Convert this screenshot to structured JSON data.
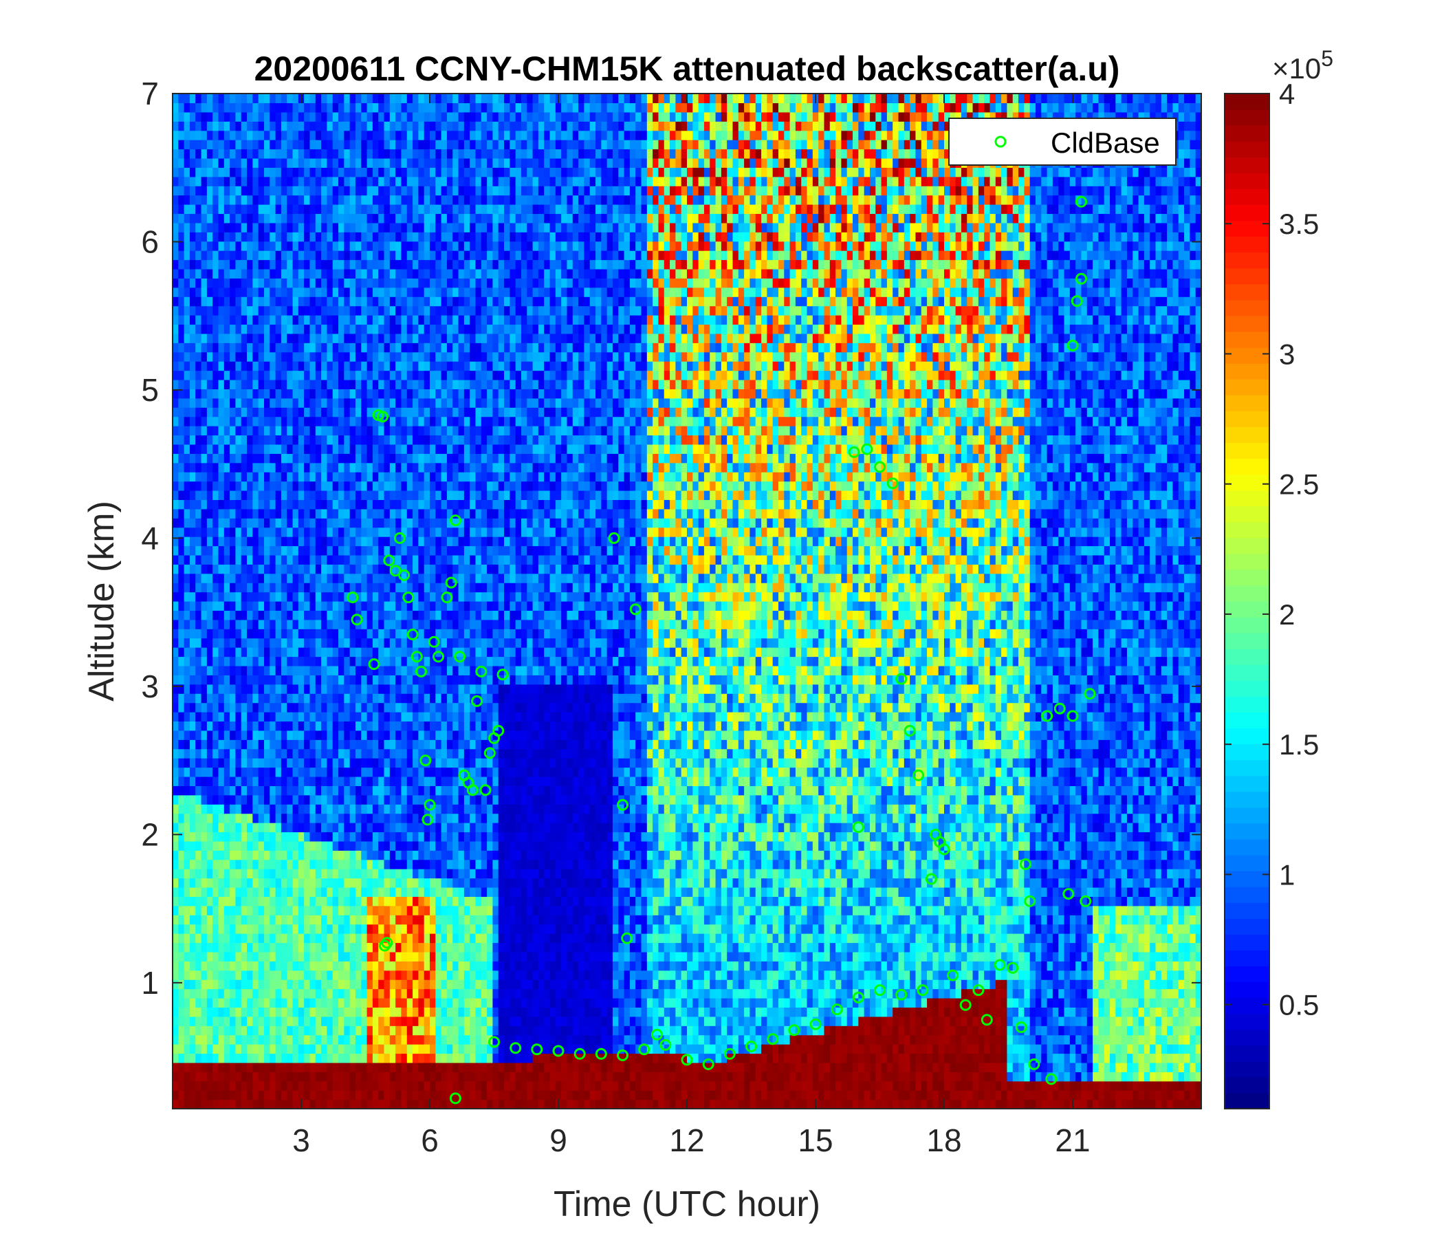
{
  "chart_data": {
    "type": "heatmap",
    "title": "20200611 CCNY-CHM15K attenuated backscatter(a.u)",
    "xlabel": "Time (UTC hour)",
    "ylabel": "Altitude (km)",
    "xlim": [
      0,
      24
    ],
    "ylim": [
      0.15,
      7
    ],
    "x_ticks": [
      3,
      6,
      9,
      12,
      15,
      18,
      21
    ],
    "y_ticks": [
      1,
      2,
      3,
      4,
      5,
      6,
      7
    ],
    "colorbar": {
      "colormap": "jet",
      "clim": [
        0.1,
        4
      ],
      "ticks": [
        0.5,
        1,
        1.5,
        2,
        2.5,
        3,
        3.5,
        4
      ],
      "multiplier": "×10",
      "exponent": "5"
    },
    "legend": {
      "location": "top-right",
      "entries": [
        "CldBase"
      ]
    },
    "series": [
      {
        "name": "CldBase",
        "marker": "circle",
        "color": "#00ff00",
        "points": [
          [
            4.2,
            3.6
          ],
          [
            4.3,
            3.45
          ],
          [
            4.7,
            3.15
          ],
          [
            4.8,
            4.83
          ],
          [
            4.9,
            4.82
          ],
          [
            4.95,
            1.25
          ],
          [
            5.0,
            1.27
          ],
          [
            5.05,
            3.85
          ],
          [
            5.2,
            3.78
          ],
          [
            5.3,
            4.0
          ],
          [
            5.4,
            3.75
          ],
          [
            5.5,
            3.6
          ],
          [
            5.6,
            3.35
          ],
          [
            5.7,
            3.2
          ],
          [
            5.8,
            3.1
          ],
          [
            5.9,
            2.5
          ],
          [
            5.95,
            2.1
          ],
          [
            6.0,
            2.2
          ],
          [
            6.1,
            3.3
          ],
          [
            6.2,
            3.2
          ],
          [
            6.4,
            3.6
          ],
          [
            6.5,
            3.7
          ],
          [
            6.6,
            4.12
          ],
          [
            6.7,
            3.2
          ],
          [
            6.8,
            2.4
          ],
          [
            6.9,
            2.35
          ],
          [
            7.0,
            2.3
          ],
          [
            7.1,
            2.9
          ],
          [
            7.2,
            3.1
          ],
          [
            7.3,
            2.3
          ],
          [
            7.4,
            2.55
          ],
          [
            7.5,
            2.65
          ],
          [
            7.6,
            2.7
          ],
          [
            7.7,
            3.08
          ],
          [
            6.6,
            0.22
          ],
          [
            7.5,
            0.6
          ],
          [
            8.0,
            0.56
          ],
          [
            8.5,
            0.55
          ],
          [
            9.0,
            0.54
          ],
          [
            9.5,
            0.52
          ],
          [
            10.0,
            0.52
          ],
          [
            10.5,
            0.51
          ],
          [
            11.0,
            0.55
          ],
          [
            11.3,
            0.65
          ],
          [
            11.5,
            0.58
          ],
          [
            12.0,
            0.48
          ],
          [
            12.5,
            0.45
          ],
          [
            13.0,
            0.52
          ],
          [
            13.5,
            0.57
          ],
          [
            14.0,
            0.62
          ],
          [
            14.5,
            0.68
          ],
          [
            15.0,
            0.72
          ],
          [
            15.5,
            0.82
          ],
          [
            16.0,
            0.9
          ],
          [
            16.5,
            0.95
          ],
          [
            17.0,
            0.92
          ],
          [
            17.5,
            0.95
          ],
          [
            17.8,
            2.0
          ],
          [
            17.9,
            1.95
          ],
          [
            18.0,
            1.9
          ],
          [
            18.2,
            1.05
          ],
          [
            18.5,
            0.85
          ],
          [
            18.8,
            0.95
          ],
          [
            19.0,
            0.75
          ],
          [
            19.3,
            1.12
          ],
          [
            19.6,
            1.1
          ],
          [
            19.8,
            0.7
          ],
          [
            19.9,
            1.8
          ],
          [
            20.0,
            1.55
          ],
          [
            20.1,
            0.45
          ],
          [
            20.4,
            2.8
          ],
          [
            20.5,
            0.35
          ],
          [
            20.7,
            2.85
          ],
          [
            20.9,
            1.6
          ],
          [
            21.0,
            2.8
          ],
          [
            21.0,
            5.3
          ],
          [
            21.1,
            5.6
          ],
          [
            21.2,
            5.75
          ],
          [
            21.2,
            6.27
          ],
          [
            21.3,
            1.55
          ],
          [
            21.4,
            2.95
          ],
          [
            10.3,
            4.0
          ],
          [
            10.5,
            2.2
          ],
          [
            10.6,
            1.3
          ],
          [
            10.8,
            3.52
          ],
          [
            16.2,
            4.6
          ],
          [
            16.5,
            4.48
          ],
          [
            16.8,
            4.37
          ],
          [
            16.0,
            2.05
          ],
          [
            17.0,
            3.05
          ],
          [
            17.2,
            2.7
          ],
          [
            17.4,
            2.4
          ],
          [
            17.7,
            1.7
          ],
          [
            15.9,
            4.58
          ]
        ]
      }
    ]
  }
}
